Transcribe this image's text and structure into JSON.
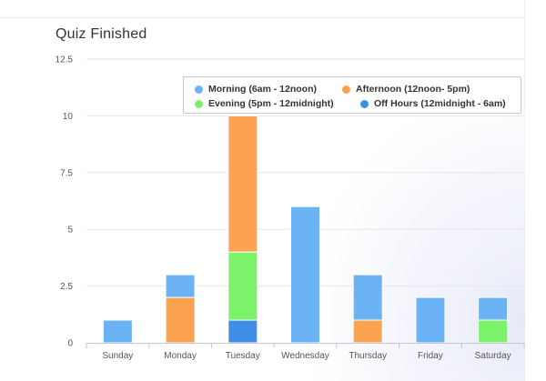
{
  "chart_data": {
    "type": "bar",
    "stacked": true,
    "title": "Quiz Finished",
    "categories": [
      "Sunday",
      "Monday",
      "Tuesday",
      "Wednesday",
      "Thursday",
      "Friday",
      "Saturday"
    ],
    "series": [
      {
        "name": "Off Hours (12midnight - 6am)",
        "color": "#3e8ee6",
        "values": [
          0,
          0,
          1,
          0,
          0,
          0,
          0
        ]
      },
      {
        "name": "Evening (5pm - 12midnight)",
        "color": "#7cf26a",
        "values": [
          0,
          0,
          3,
          0,
          0,
          0,
          1
        ]
      },
      {
        "name": "Afternoon (12noon- 5pm)",
        "color": "#fca351",
        "values": [
          0,
          2,
          6,
          0,
          1,
          0,
          0
        ]
      },
      {
        "name": "Morning (6am - 12noon)",
        "color": "#6cb3f5",
        "values": [
          1,
          1,
          0,
          6,
          2,
          2,
          1
        ]
      }
    ],
    "yticks": [
      "0",
      "2.5",
      "5",
      "7.5",
      "10",
      "12.5"
    ],
    "ylim": [
      0,
      12.5
    ],
    "grid": true,
    "legend_position": "top-right",
    "xlabel": "",
    "ylabel": ""
  },
  "legend": {
    "items": [
      {
        "label": "Morning (6am - 12noon)",
        "color": "#6cb3f5"
      },
      {
        "label": "Afternoon (12noon- 5pm)",
        "color": "#fca351"
      },
      {
        "label": "Evening (5pm - 12midnight)",
        "color": "#7cf26a"
      },
      {
        "label": "Off Hours (12midnight - 6am)",
        "color": "#3e8ee6"
      }
    ]
  }
}
